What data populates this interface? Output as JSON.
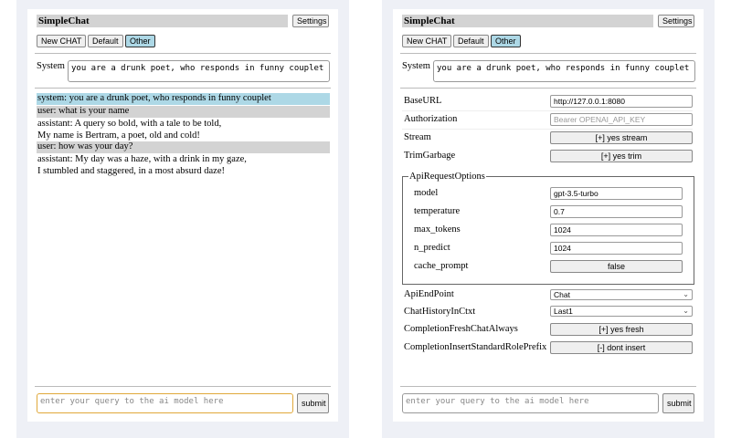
{
  "app_title": "SimpleChat",
  "settings_label": "Settings",
  "session_buttons": [
    "New CHAT",
    "Default",
    "Other"
  ],
  "system_label": "System",
  "system_prompt": "you are a drunk poet, who responds in funny couplet",
  "messages": [
    {
      "role": "system",
      "text": "system: you are a drunk poet, who responds in funny couplet"
    },
    {
      "role": "user",
      "text": "user: what is your name"
    },
    {
      "role": "assistant",
      "text": "assistant: A query so bold, with a tale to be told,",
      "text2": "My name is Bertram, a poet, old and cold!"
    },
    {
      "role": "user",
      "text": "user: how was your day?"
    },
    {
      "role": "assistant",
      "text": "assistant: My day was a haze, with a drink in my gaze,",
      "text2": "I stumbled and staggered, in a most absurd daze!"
    }
  ],
  "query_placeholder": "enter your query to the ai model here",
  "submit_label": "submit",
  "settings": {
    "base_url": {
      "label": "BaseURL",
      "value": "http://127.0.0.1:8080"
    },
    "authorization": {
      "label": "Authorization",
      "placeholder": "Bearer OPENAI_API_KEY"
    },
    "stream": {
      "label": "Stream",
      "value": "[+] yes stream"
    },
    "trim": {
      "label": "TrimGarbage",
      "value": "[+] yes trim"
    },
    "api_options": {
      "legend": "ApiRequestOptions",
      "model": {
        "label": "model",
        "value": "gpt-3.5-turbo"
      },
      "temperature": {
        "label": "temperature",
        "value": "0.7"
      },
      "max_tokens": {
        "label": "max_tokens",
        "value": "1024"
      },
      "n_predict": {
        "label": "n_predict",
        "value": "1024"
      },
      "cache_prompt": {
        "label": "cache_prompt",
        "value": "false"
      }
    },
    "endpoint": {
      "label": "ApiEndPoint",
      "value": "Chat"
    },
    "history": {
      "label": "ChatHistoryInCtxt",
      "value": "Last1"
    },
    "fresh": {
      "label": "CompletionFreshChatAlways",
      "value": "[+] yes fresh"
    },
    "insert": {
      "label": "CompletionInsertStandardRolePrefix",
      "value": "[-] dont insert"
    }
  },
  "colors": {
    "system_msg": "#add8e6",
    "user_msg": "#d3d3d3",
    "active_button": "#add8e6",
    "focus_border": "#e0a83a"
  }
}
